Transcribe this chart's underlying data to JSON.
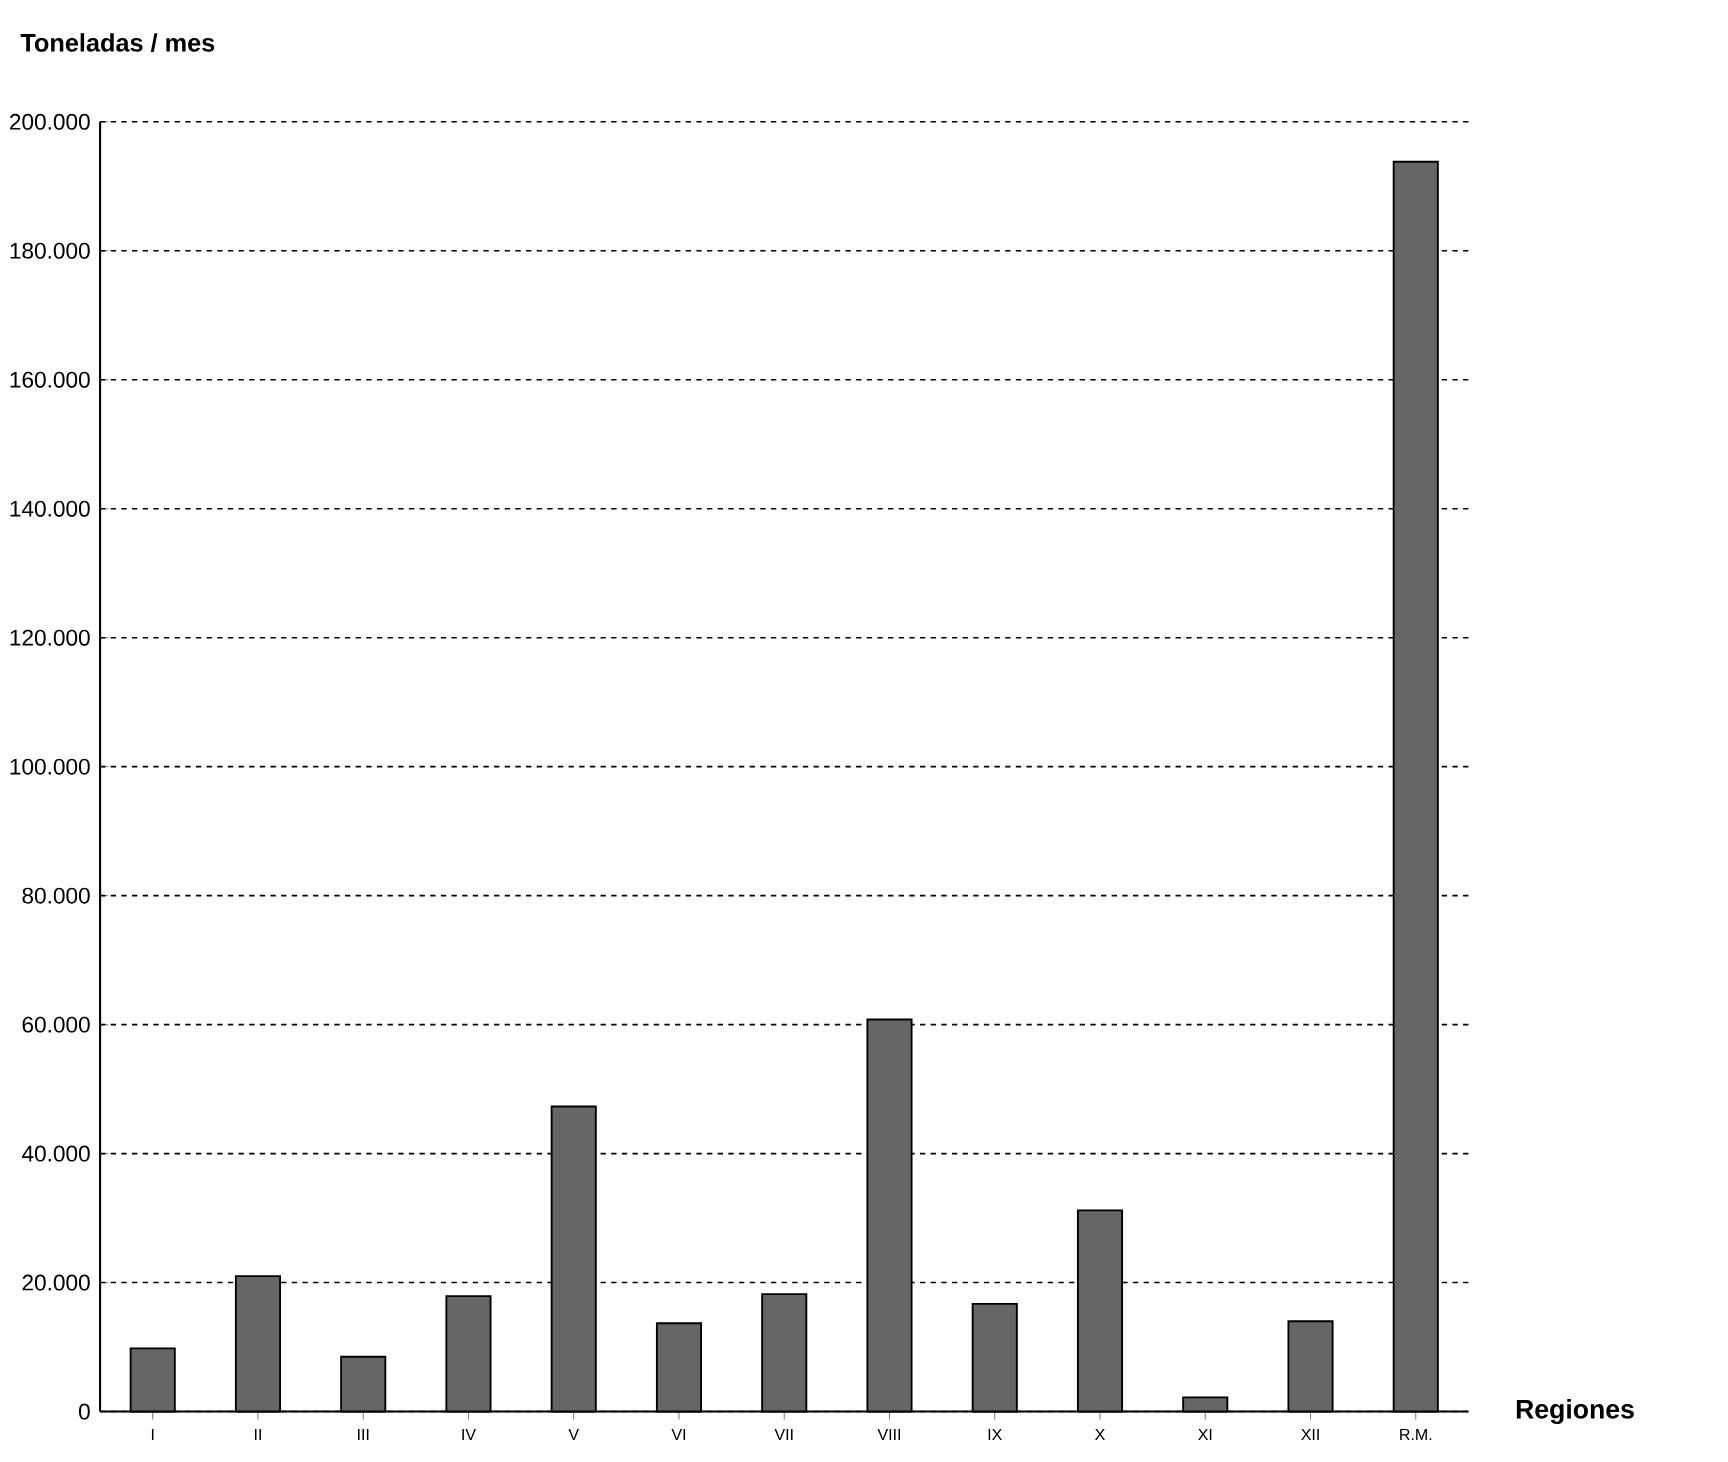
{
  "chart_data": {
    "type": "bar",
    "ylabel": "Toneladas / mes",
    "xlabel": "Regiones",
    "categories": [
      "I",
      "II",
      "III",
      "IV",
      "V",
      "VI",
      "VII",
      "VIII",
      "IX",
      "X",
      "XI",
      "XII",
      "R.M."
    ],
    "values": [
      9800,
      21000,
      8500,
      17900,
      47300,
      13700,
      18200,
      60800,
      16700,
      31200,
      2200,
      14000,
      193800
    ],
    "color": "#666666",
    "ylim": [
      0,
      200000
    ],
    "yticks": [
      0,
      {
        "value": 20000,
        "label": "20.000"
      },
      {
        "value": 40000,
        "label": "40.000"
      },
      {
        "value": 60000,
        "label": "60.000"
      },
      {
        "value": 80000,
        "label": "80.000"
      },
      {
        "value": 100000,
        "label": "100.000"
      },
      {
        "value": 120000,
        "label": "120.000"
      },
      {
        "value": 140000,
        "label": "140.000"
      },
      {
        "value": 160000,
        "label": "160.000"
      },
      {
        "value": 180000,
        "label": "180.000"
      },
      {
        "value": 200000,
        "label": "200.000"
      }
    ],
    "grid": "y"
  }
}
